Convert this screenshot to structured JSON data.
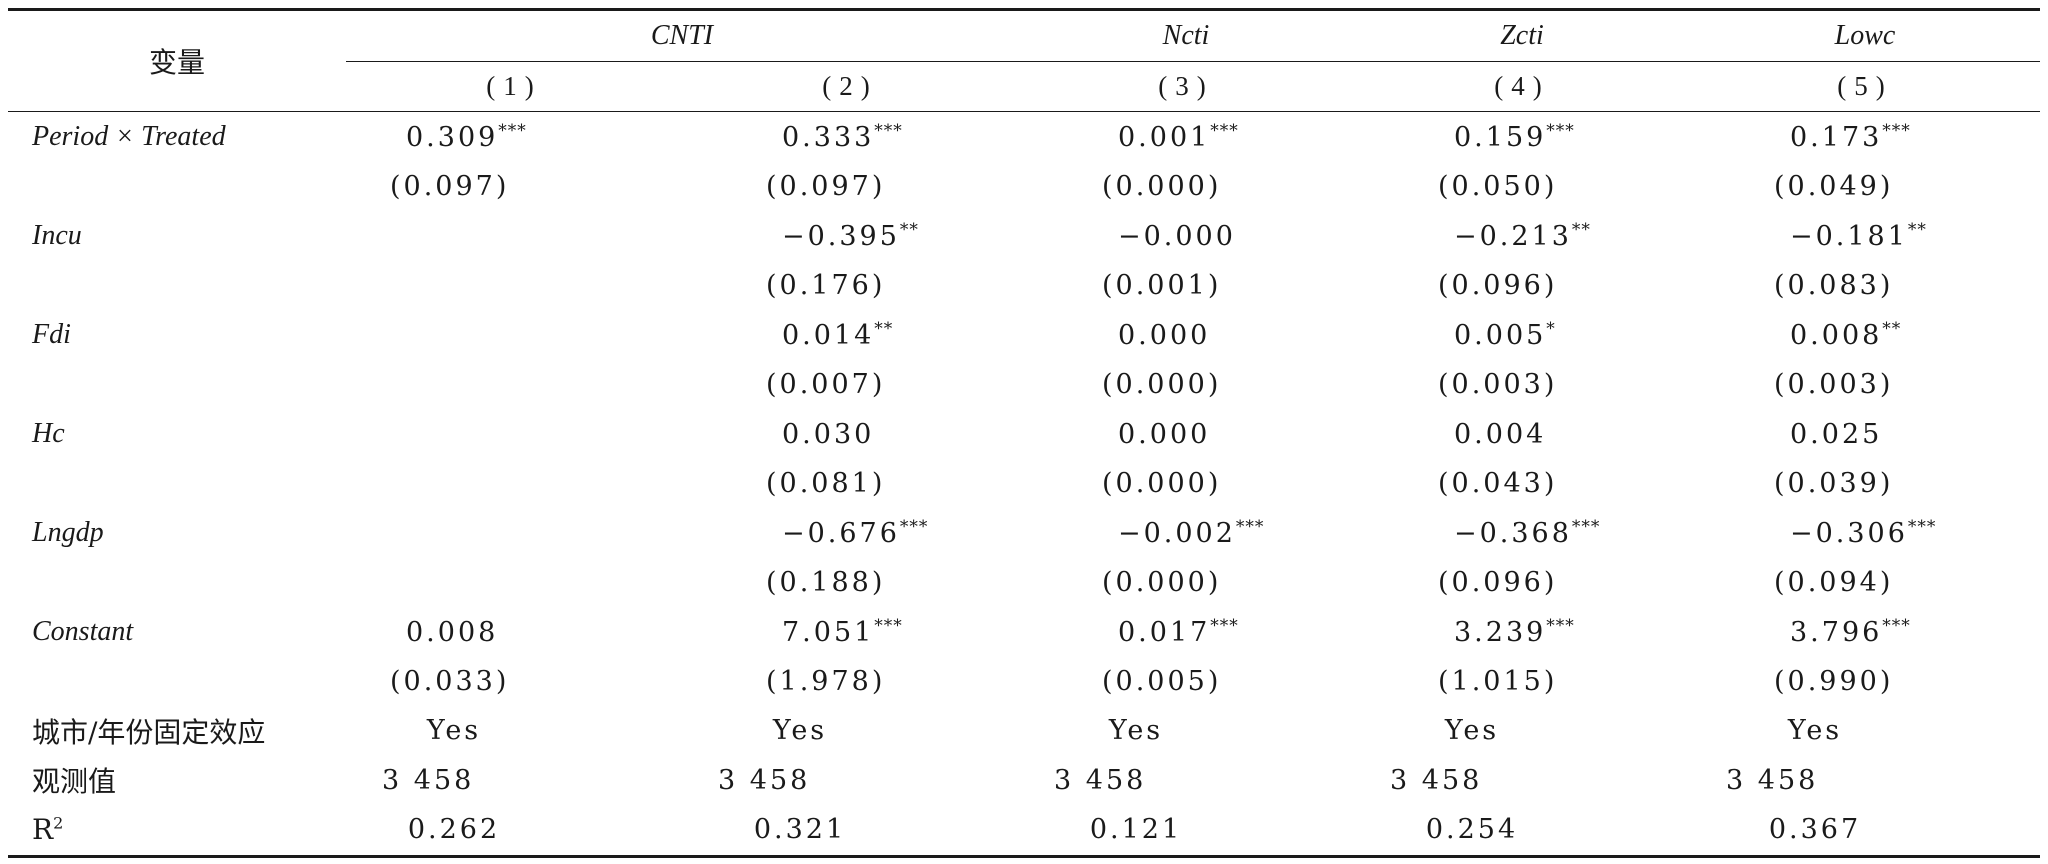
{
  "header": {
    "variable_label": "变量",
    "groups": [
      "CNTI",
      "Ncti",
      "Zcti",
      "Lowc"
    ],
    "columns": [
      "(1)",
      "(2)",
      "(3)",
      "(4)",
      "(5)"
    ]
  },
  "rows": [
    {
      "label": "Period × Treated",
      "italic": true,
      "coef": [
        {
          "v": "0.309",
          "s": "***"
        },
        {
          "v": "0.333",
          "s": "***"
        },
        {
          "v": "0.001",
          "s": "***"
        },
        {
          "v": "0.159",
          "s": "***"
        },
        {
          "v": "0.173",
          "s": "***"
        }
      ],
      "se": [
        "(0.097)",
        "(0.097)",
        "(0.000)",
        "(0.050)",
        "(0.049)"
      ]
    },
    {
      "label": "Incu",
      "italic": true,
      "coef": [
        {
          "v": "",
          "s": ""
        },
        {
          "v": "−0.395",
          "s": "**"
        },
        {
          "v": "−0.000",
          "s": ""
        },
        {
          "v": "−0.213",
          "s": "**"
        },
        {
          "v": "−0.181",
          "s": "**"
        }
      ],
      "se": [
        "",
        "(0.176)",
        "(0.001)",
        "(0.096)",
        "(0.083)"
      ]
    },
    {
      "label": "Fdi",
      "italic": true,
      "coef": [
        {
          "v": "",
          "s": ""
        },
        {
          "v": "0.014",
          "s": "**"
        },
        {
          "v": "0.000",
          "s": ""
        },
        {
          "v": "0.005",
          "s": "*"
        },
        {
          "v": "0.008",
          "s": "**"
        }
      ],
      "se": [
        "",
        "(0.007)",
        "(0.000)",
        "(0.003)",
        "(0.003)"
      ]
    },
    {
      "label": "Hc",
      "italic": true,
      "coef": [
        {
          "v": "",
          "s": ""
        },
        {
          "v": "0.030",
          "s": ""
        },
        {
          "v": "0.000",
          "s": ""
        },
        {
          "v": "0.004",
          "s": ""
        },
        {
          "v": "0.025",
          "s": ""
        }
      ],
      "se": [
        "",
        "(0.081)",
        "(0.000)",
        "(0.043)",
        "(0.039)"
      ]
    },
    {
      "label": "Lngdp",
      "italic": true,
      "coef": [
        {
          "v": "",
          "s": ""
        },
        {
          "v": "−0.676",
          "s": "***"
        },
        {
          "v": "−0.002",
          "s": "***"
        },
        {
          "v": "−0.368",
          "s": "***"
        },
        {
          "v": "−0.306",
          "s": "***"
        }
      ],
      "se": [
        "",
        "(0.188)",
        "(0.000)",
        "(0.096)",
        "(0.094)"
      ]
    },
    {
      "label": "Constant",
      "italic": true,
      "coef": [
        {
          "v": "0.008",
          "s": ""
        },
        {
          "v": "7.051",
          "s": "***"
        },
        {
          "v": "0.017",
          "s": "***"
        },
        {
          "v": "3.239",
          "s": "***"
        },
        {
          "v": "3.796",
          "s": "***"
        }
      ],
      "se": [
        "(0.033)",
        "(1.978)",
        "(0.005)",
        "(1.015)",
        "(0.990)"
      ]
    }
  ],
  "footer": [
    {
      "label": "城市/年份固定效应",
      "values": [
        "Yes",
        "Yes",
        "Yes",
        "Yes",
        "Yes"
      ]
    },
    {
      "label": "观测值",
      "values": [
        "3 458",
        "3 458",
        "3 458",
        "3 458",
        "3 458"
      ]
    },
    {
      "label": "R",
      "label_sup": "2",
      "values": [
        "0.262",
        "0.321",
        "0.121",
        "0.254",
        "0.367"
      ]
    }
  ]
}
